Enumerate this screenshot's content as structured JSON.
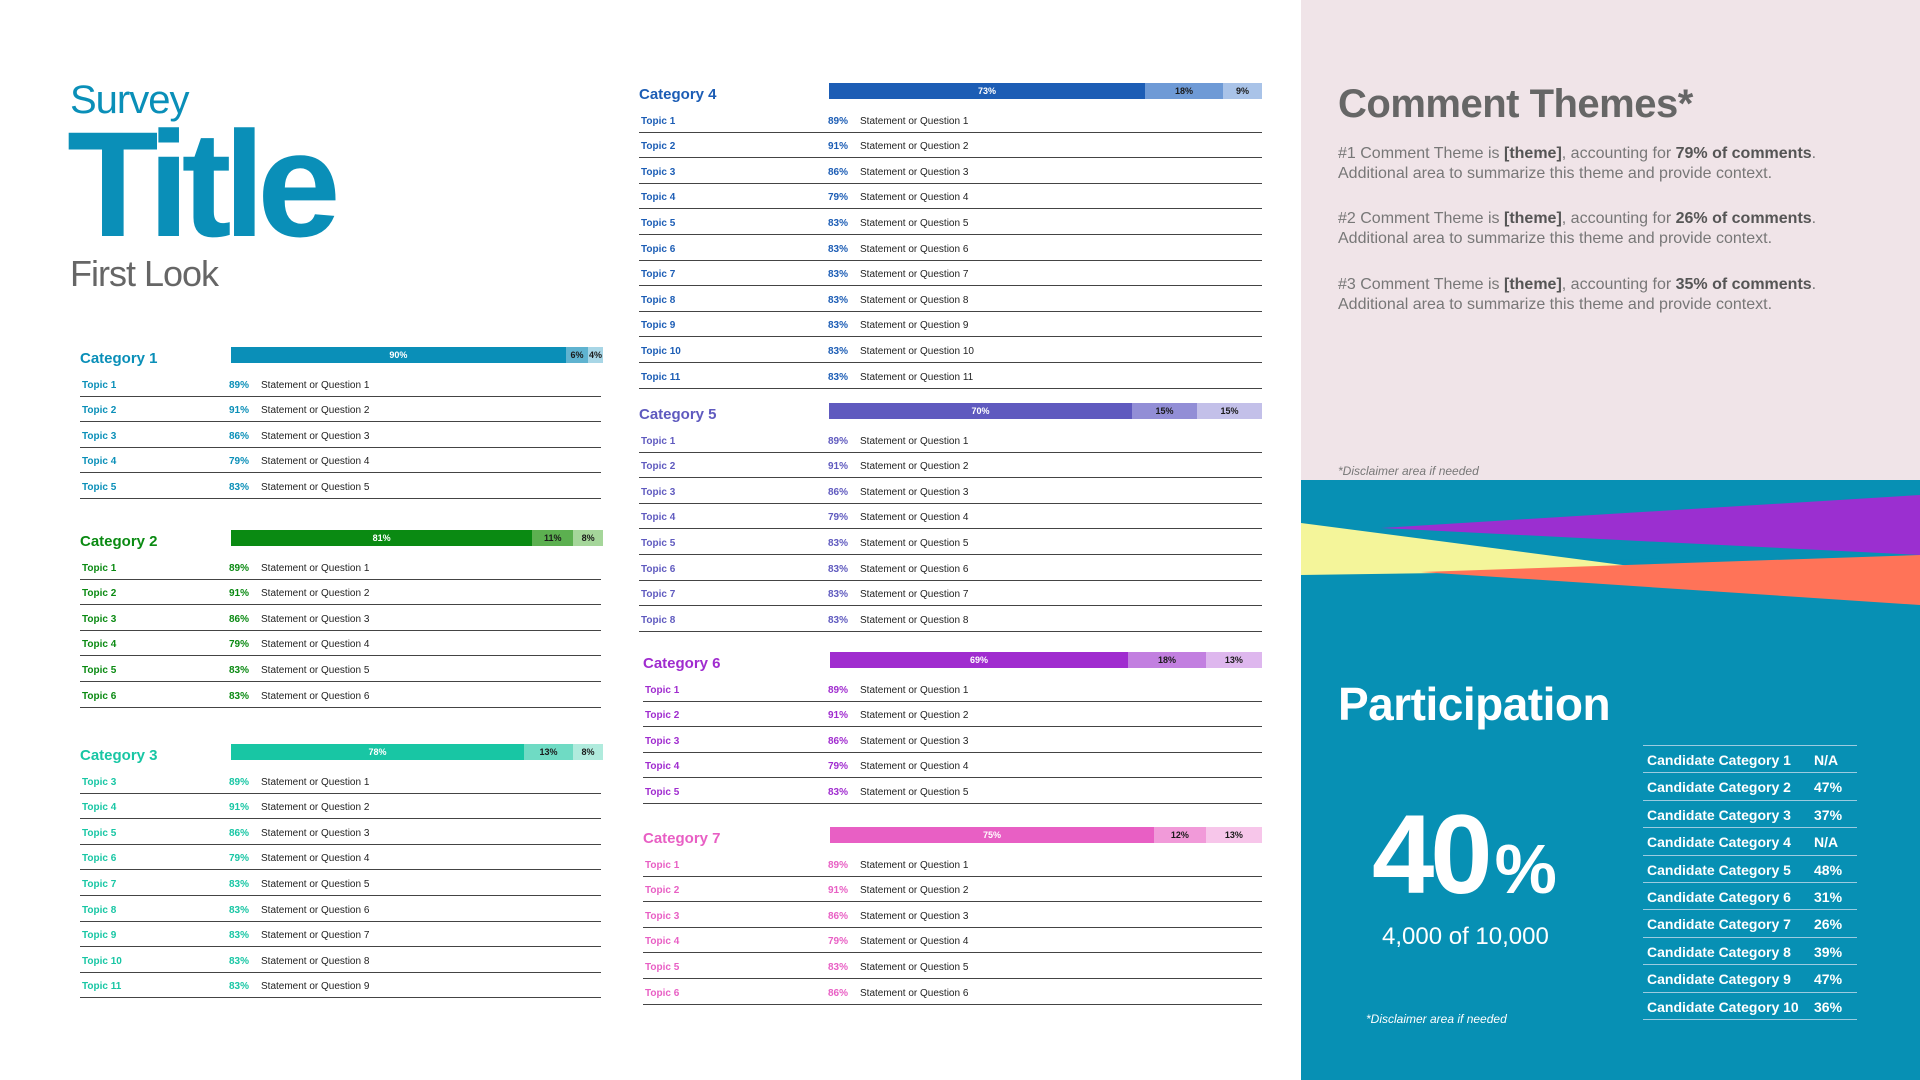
{
  "header": {
    "survey": "Survey",
    "title": "Title",
    "subtitle": "First Look"
  },
  "categories": [
    {
      "name": "Category 1",
      "color": "#0A8FB8",
      "bar": [
        {
          "label": "90%",
          "value": 90,
          "color": "#0A8FB8",
          "text": "#ffffff"
        },
        {
          "label": "6%",
          "value": 6,
          "color": "#5FB3D0",
          "text": "#1a1a1a"
        },
        {
          "label": "4%",
          "value": 4,
          "color": "#A8D6E6",
          "text": "#1a1a1a"
        }
      ],
      "rows": [
        {
          "topic": "Topic 1",
          "pct": "89%",
          "stmt": "Statement or Question 1"
        },
        {
          "topic": "Topic 2",
          "pct": "91%",
          "stmt": "Statement or Question 2"
        },
        {
          "topic": "Topic 3",
          "pct": "86%",
          "stmt": "Statement or Question 3"
        },
        {
          "topic": "Topic 4",
          "pct": "79%",
          "stmt": "Statement or Question 4"
        },
        {
          "topic": "Topic 5",
          "pct": "83%",
          "stmt": "Statement or Question 5"
        }
      ]
    },
    {
      "name": "Category 2",
      "color": "#0A8A12",
      "bar": [
        {
          "label": "81%",
          "value": 81,
          "color": "#0A8A12",
          "text": "#ffffff"
        },
        {
          "label": "11%",
          "value": 11,
          "color": "#5CB050",
          "text": "#1a1a1a"
        },
        {
          "label": "8%",
          "value": 8,
          "color": "#A5D69A",
          "text": "#1a1a1a"
        }
      ],
      "rows": [
        {
          "topic": "Topic 1",
          "pct": "89%",
          "stmt": "Statement or Question 1"
        },
        {
          "topic": "Topic 2",
          "pct": "91%",
          "stmt": "Statement or Question 2"
        },
        {
          "topic": "Topic 3",
          "pct": "86%",
          "stmt": "Statement or Question 3"
        },
        {
          "topic": "Topic 4",
          "pct": "79%",
          "stmt": "Statement or Question 4"
        },
        {
          "topic": "Topic 5",
          "pct": "83%",
          "stmt": "Statement or Question 5"
        },
        {
          "topic": "Topic 6",
          "pct": "83%",
          "stmt": "Statement or Question 6"
        }
      ]
    },
    {
      "name": "Category 3",
      "color": "#18C6A4",
      "bar": [
        {
          "label": "78%",
          "value": 78,
          "color": "#18C6A4",
          "text": "#ffffff"
        },
        {
          "label": "13%",
          "value": 13,
          "color": "#6FDBC4",
          "text": "#1a1a1a"
        },
        {
          "label": "8%",
          "value": 8,
          "color": "#B0EBDD",
          "text": "#1a1a1a"
        }
      ],
      "rows": [
        {
          "topic": "Topic 3",
          "pct": "89%",
          "stmt": "Statement or Question 1"
        },
        {
          "topic": "Topic 4",
          "pct": "91%",
          "stmt": "Statement or Question 2"
        },
        {
          "topic": "Topic 5",
          "pct": "86%",
          "stmt": "Statement or Question 3"
        },
        {
          "topic": "Topic 6",
          "pct": "79%",
          "stmt": "Statement or Question 4"
        },
        {
          "topic": "Topic 7",
          "pct": "83%",
          "stmt": "Statement or Question 5"
        },
        {
          "topic": "Topic 8",
          "pct": "83%",
          "stmt": "Statement or Question 6"
        },
        {
          "topic": "Topic 9",
          "pct": "83%",
          "stmt": "Statement or Question 7"
        },
        {
          "topic": "Topic 10",
          "pct": "83%",
          "stmt": "Statement or Question 8"
        },
        {
          "topic": "Topic 11",
          "pct": "83%",
          "stmt": "Statement or Question 9"
        }
      ]
    },
    {
      "name": "Category 4",
      "color": "#1C5DB5",
      "bar": [
        {
          "label": "73%",
          "value": 73,
          "color": "#1C5DB5",
          "text": "#ffffff"
        },
        {
          "label": "18%",
          "value": 18,
          "color": "#6E9AD6",
          "text": "#1a1a1a"
        },
        {
          "label": "9%",
          "value": 9,
          "color": "#A9C3E8",
          "text": "#1a1a1a"
        }
      ],
      "rows": [
        {
          "topic": "Topic 1",
          "pct": "89%",
          "stmt": "Statement or Question 1"
        },
        {
          "topic": "Topic 2",
          "pct": "91%",
          "stmt": "Statement or Question 2"
        },
        {
          "topic": "Topic 3",
          "pct": "86%",
          "stmt": "Statement or Question 3"
        },
        {
          "topic": "Topic 4",
          "pct": "79%",
          "stmt": "Statement or Question 4"
        },
        {
          "topic": "Topic 5",
          "pct": "83%",
          "stmt": "Statement or Question 5"
        },
        {
          "topic": "Topic 6",
          "pct": "83%",
          "stmt": "Statement or Question 6"
        },
        {
          "topic": "Topic 7",
          "pct": "83%",
          "stmt": "Statement or Question 7"
        },
        {
          "topic": "Topic 8",
          "pct": "83%",
          "stmt": "Statement or Question 8"
        },
        {
          "topic": "Topic 9",
          "pct": "83%",
          "stmt": "Statement or Question 9"
        },
        {
          "topic": "Topic 10",
          "pct": "83%",
          "stmt": "Statement or Question 10"
        },
        {
          "topic": "Topic 11",
          "pct": "83%",
          "stmt": "Statement or Question 11"
        }
      ]
    },
    {
      "name": "Category 5",
      "color": "#5F5ABF",
      "bar": [
        {
          "label": "70%",
          "value": 70,
          "color": "#5F5ABF",
          "text": "#ffffff"
        },
        {
          "label": "15%",
          "value": 15,
          "color": "#928ED6",
          "text": "#1a1a1a"
        },
        {
          "label": "15%",
          "value": 15,
          "color": "#C3C0E9",
          "text": "#1a1a1a"
        }
      ],
      "rows": [
        {
          "topic": "Topic 1",
          "pct": "89%",
          "stmt": "Statement or Question 1"
        },
        {
          "topic": "Topic 2",
          "pct": "91%",
          "stmt": "Statement or Question 2"
        },
        {
          "topic": "Topic 3",
          "pct": "86%",
          "stmt": "Statement or Question 3"
        },
        {
          "topic": "Topic 4",
          "pct": "79%",
          "stmt": "Statement or Question 4"
        },
        {
          "topic": "Topic 5",
          "pct": "83%",
          "stmt": "Statement or Question 5"
        },
        {
          "topic": "Topic 6",
          "pct": "83%",
          "stmt": "Statement or Question 6"
        },
        {
          "topic": "Topic 7",
          "pct": "83%",
          "stmt": "Statement or Question 7"
        },
        {
          "topic": "Topic 8",
          "pct": "83%",
          "stmt": "Statement or Question 8"
        }
      ]
    },
    {
      "name": "Category 6",
      "color": "#A02CCF",
      "bar": [
        {
          "label": "69%",
          "value": 69,
          "color": "#A02CCF",
          "text": "#ffffff"
        },
        {
          "label": "18%",
          "value": 18,
          "color": "#C27FE0",
          "text": "#1a1a1a"
        },
        {
          "label": "13%",
          "value": 13,
          "color": "#DEB7EE",
          "text": "#1a1a1a"
        }
      ],
      "rows": [
        {
          "topic": "Topic 1",
          "pct": "89%",
          "stmt": "Statement or Question 1"
        },
        {
          "topic": "Topic 2",
          "pct": "91%",
          "stmt": "Statement or Question 2"
        },
        {
          "topic": "Topic 3",
          "pct": "86%",
          "stmt": "Statement or Question 3"
        },
        {
          "topic": "Topic 4",
          "pct": "79%",
          "stmt": "Statement or Question 4"
        },
        {
          "topic": "Topic 5",
          "pct": "83%",
          "stmt": "Statement or Question 5"
        }
      ]
    },
    {
      "name": "Category 7",
      "color": "#E85FC4",
      "bar": [
        {
          "label": "75%",
          "value": 75,
          "color": "#E85FC4",
          "text": "#ffffff"
        },
        {
          "label": "12%",
          "value": 12,
          "color": "#F19AD9",
          "text": "#1a1a1a"
        },
        {
          "label": "13%",
          "value": 13,
          "color": "#F7C6EA",
          "text": "#1a1a1a"
        }
      ],
      "rows": [
        {
          "topic": "Topic 1",
          "pct": "89%",
          "stmt": "Statement or Question 1"
        },
        {
          "topic": "Topic 2",
          "pct": "91%",
          "stmt": "Statement or Question 2"
        },
        {
          "topic": "Topic 3",
          "pct": "86%",
          "stmt": "Statement or Question 3"
        },
        {
          "topic": "Topic 4",
          "pct": "79%",
          "stmt": "Statement or Question 4"
        },
        {
          "topic": "Topic 5",
          "pct": "83%",
          "stmt": "Statement or Question 5"
        },
        {
          "topic": "Topic 6",
          "pct": "86%",
          "stmt": "Statement or Question 6"
        }
      ]
    }
  ],
  "comment_themes": {
    "title": "Comment Themes*",
    "items": [
      {
        "a": "#1 Comment Theme is ",
        "theme": "[theme]",
        "b": ", accounting for ",
        "share": "79% of comments",
        "c": ".",
        "detail": "Additional area to summarize this theme and provide context."
      },
      {
        "a": "#2 Comment Theme is ",
        "theme": "[theme]",
        "b": ", accounting for ",
        "share": "26% of comments",
        "c": ".",
        "detail": "Additional area to summarize this theme and provide context."
      },
      {
        "a": "#3 Comment Theme is ",
        "theme": "[theme]",
        "b": ", accounting for ",
        "share": "35% of comments",
        "c": ".",
        "detail": "Additional area to summarize this theme and provide context."
      }
    ],
    "disclaimer": "*Disclaimer area if needed"
  },
  "participation": {
    "title": "Participation",
    "percent": "40",
    "percent_sign": "%",
    "count": "4,000 of 10,000",
    "disclaimer": "*Disclaimer area if needed",
    "candidates": [
      {
        "name": "Candidate Category 1",
        "value": "N/A"
      },
      {
        "name": "Candidate Category 2",
        "value": "47%"
      },
      {
        "name": "Candidate Category 3",
        "value": "37%"
      },
      {
        "name": "Candidate Category 4",
        "value": "N/A"
      },
      {
        "name": "Candidate Category 5",
        "value": "48%"
      },
      {
        "name": "Candidate Category 6",
        "value": "31%"
      },
      {
        "name": "Candidate Category 7",
        "value": "26%"
      },
      {
        "name": "Candidate Category 8",
        "value": "39%"
      },
      {
        "name": "Candidate Category 9",
        "value": "47%"
      },
      {
        "name": "Candidate Category 10",
        "value": "36%"
      }
    ]
  },
  "colors": {
    "panel_top": "#F0E4E8",
    "panel_bottom": "#0790B4",
    "ribbon_purple": "#9B2FD0",
    "ribbon_yellow": "#F4F59A",
    "ribbon_orange": "#FF7358"
  }
}
